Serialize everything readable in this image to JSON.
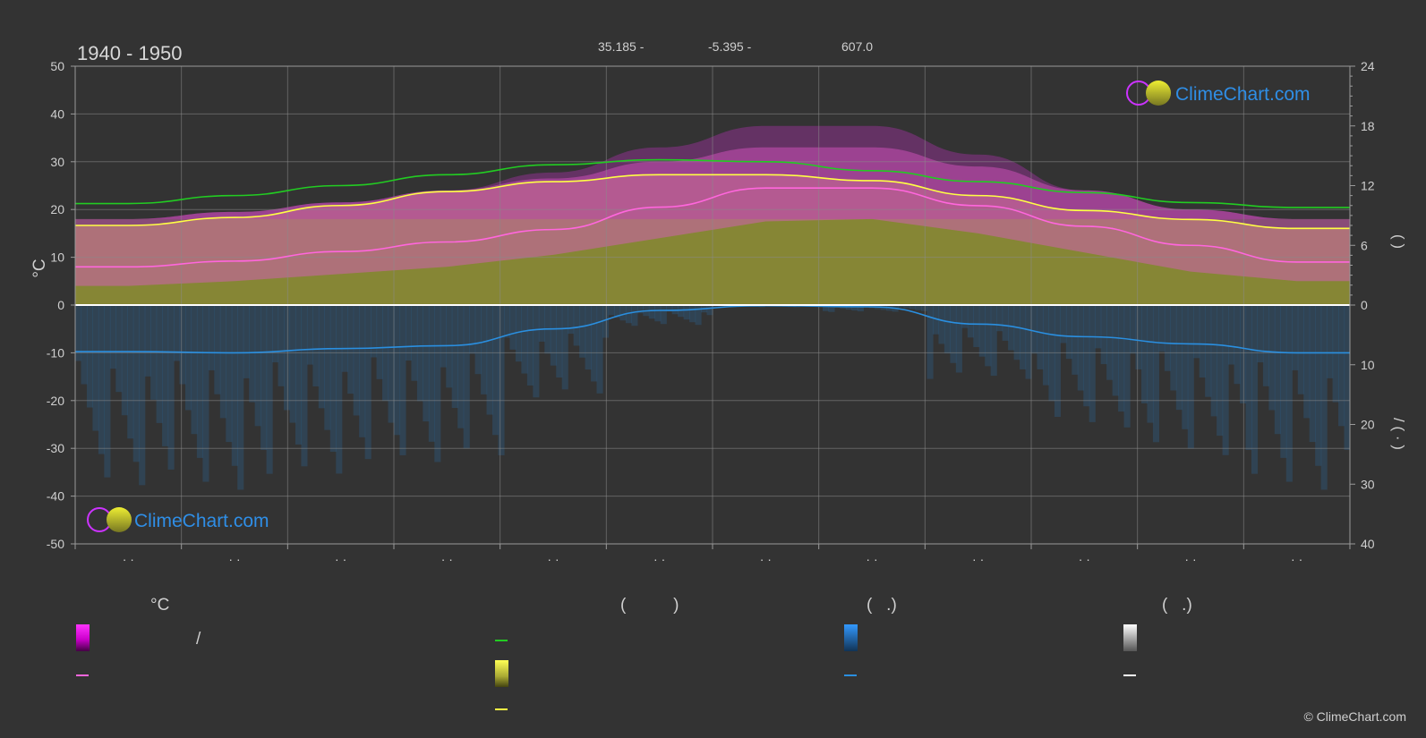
{
  "title": "1940 - 1950",
  "coords": {
    "lat": "35.185 -",
    "lon": "-5.395 -",
    "elev": "607.0"
  },
  "brand": {
    "name": "ClimeChart.com",
    "copyright": "© ClimeChart.com"
  },
  "axis": {
    "left_unit": "°C",
    "left_ticks": [
      "50",
      "40",
      "30",
      "20",
      "10",
      "0",
      "-10",
      "-20",
      "-30",
      "-40",
      "-50"
    ],
    "right_ticks_top": [
      "24",
      "18",
      "12",
      "6",
      "0"
    ],
    "right_ticks_bottom": [
      "10",
      "20",
      "30",
      "40"
    ],
    "right_label_upper": "(      )",
    "right_label_lower": "/ (  ·  )",
    "month_labels": [
      "· ·",
      "· ·",
      "· ·",
      "· ·",
      "· ·",
      "· ·",
      "· ·",
      "· ·",
      "· ·",
      "· ·",
      "· ·",
      "· ·"
    ]
  },
  "legend": {
    "col1_header": "°C",
    "col2_header": "(          )",
    "col3_header": "(   .)",
    "col4_header": "(   .)",
    "col1_slash": "/"
  },
  "colors": {
    "background": "#333333",
    "grid": "#8a8a8a",
    "magenta": "#e020e0",
    "pink": "#ff66dd",
    "green": "#22cc22",
    "yellow": "#ffff44",
    "olive": "#9a9a3a",
    "blue": "#2a8fe0",
    "white": "#ffffff"
  },
  "chart_data": {
    "type": "line",
    "title": "1940 - 1950",
    "x": [
      "1",
      "2",
      "3",
      "4",
      "5",
      "6",
      "7",
      "8",
      "9",
      "10",
      "11",
      "12"
    ],
    "ylim_left": [
      -50,
      50
    ],
    "ylim_right_sun": [
      0,
      24
    ],
    "ylim_right_precip": [
      0,
      40
    ],
    "grid": true,
    "series": [
      {
        "key": "daylight",
        "axis": "sun",
        "color": "#22cc22",
        "values": [
          10.2,
          11.0,
          12.0,
          13.1,
          14.1,
          14.6,
          14.4,
          13.5,
          12.4,
          11.3,
          10.3,
          9.8
        ]
      },
      {
        "key": "sunshine",
        "axis": "sun",
        "color": "#ffff44",
        "values": [
          8.0,
          8.8,
          10.0,
          11.4,
          12.4,
          13.1,
          13.1,
          12.5,
          11.0,
          9.5,
          8.6,
          7.7
        ]
      },
      {
        "key": "mean_temp",
        "axis": "temp",
        "color": "#ff66dd",
        "values": [
          8.0,
          9.2,
          11.2,
          13.2,
          15.8,
          20.5,
          24.5,
          24.5,
          20.8,
          16.5,
          12.5,
          9.0
        ]
      },
      {
        "key": "mean_precip",
        "axis": "precip",
        "color": "#2a8fe0",
        "values": [
          7.8,
          8.0,
          7.3,
          6.8,
          4.0,
          0.9,
          0.1,
          0.3,
          3.2,
          5.3,
          6.5,
          8.0
        ]
      }
    ],
    "bands": {
      "temp_max_approx": [
        18,
        19.5,
        21.5,
        24,
        26.5,
        30,
        33,
        33,
        29,
        24,
        20,
        18
      ],
      "temp_min_approx": [
        4,
        5,
        6.5,
        8,
        10.5,
        14,
        17.5,
        18,
        15,
        11,
        7,
        5
      ],
      "sunshine_fill_top_sun": [
        8.0,
        8.8,
        10.0,
        11.4,
        12.4,
        13.1,
        13.1,
        12.5,
        11.0,
        9.5,
        8.6,
        7.7
      ]
    }
  }
}
